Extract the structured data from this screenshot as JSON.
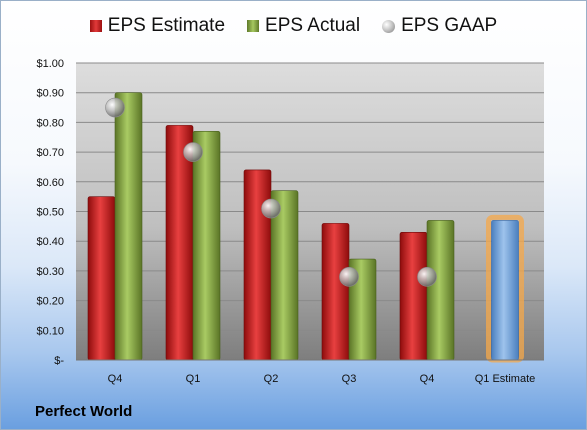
{
  "legend": {
    "estimate": "EPS Estimate",
    "actual": "EPS Actual",
    "gaap": "EPS GAAP"
  },
  "company": "Perfect World",
  "colors": {
    "estimate": "#c91b1b",
    "actual": "#7f9f3c",
    "gaap": "#a0a0a0",
    "forecast": "#6f9fd4",
    "forecast_glow": "#f5a84a"
  },
  "chart_data": {
    "type": "bar",
    "categories": [
      "Q4",
      "Q1",
      "Q2",
      "Q3",
      "Q4",
      "Q1 Estimate"
    ],
    "ylim": [
      0,
      1.0
    ],
    "yticks": [
      0,
      0.1,
      0.2,
      0.3,
      0.4,
      0.5,
      0.6,
      0.7,
      0.8,
      0.9,
      1.0
    ],
    "ytick_labels": [
      "$-",
      "$0.10",
      "$0.20",
      "$0.30",
      "$0.40",
      "$0.50",
      "$0.60",
      "$0.70",
      "$0.80",
      "$0.90",
      "$1.00"
    ],
    "grid": true,
    "legend_position": "top",
    "series": [
      {
        "name": "EPS Estimate",
        "values": [
          0.55,
          0.79,
          0.64,
          0.46,
          0.43,
          null
        ]
      },
      {
        "name": "EPS Actual",
        "values": [
          0.9,
          0.77,
          0.57,
          0.34,
          0.47,
          null
        ]
      },
      {
        "name": "EPS GAAP",
        "values": [
          0.85,
          0.7,
          0.51,
          0.28,
          0.28,
          null
        ]
      }
    ],
    "forecast": {
      "category": "Q1 Estimate",
      "value": 0.47
    }
  }
}
